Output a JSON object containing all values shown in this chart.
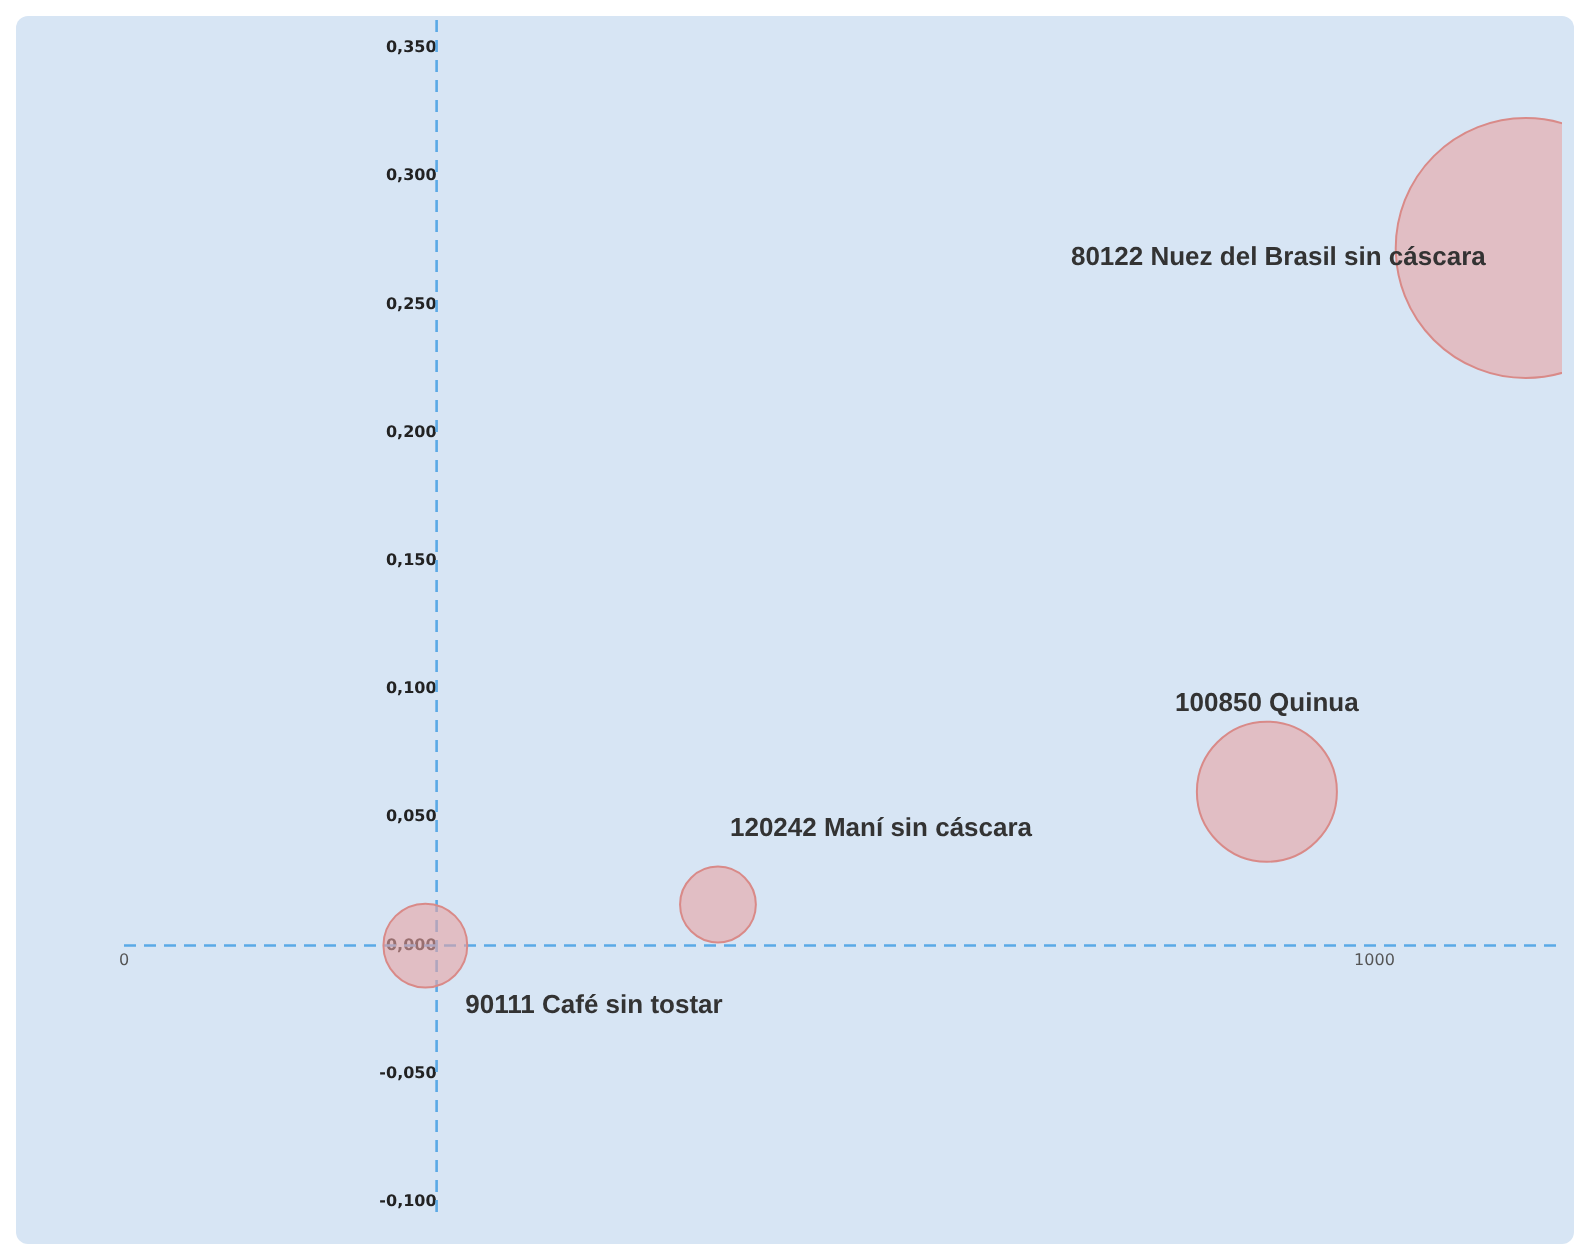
{
  "chart_data": {
    "type": "bubble",
    "x": [
      241,
      475,
      914,
      1121
    ],
    "values": [
      0,
      0.016,
      0.06,
      0.272
    ],
    "sizes": [
      0.104,
      0.085,
      0.29,
      1
    ],
    "color": "#e8a3a3",
    "xlim": [
      0,
      1150
    ],
    "xticks": [
      0,
      1000
    ],
    "ylim": [
      -0.1,
      0.35
    ],
    "yticks": [
      {
        "value": -0.1,
        "label": "-0,100"
      },
      {
        "value": -0.05,
        "label": "-0,050"
      },
      {
        "value": 0,
        "label": "0,000"
      },
      {
        "value": 0.05,
        "label": "0,050"
      },
      {
        "value": 0.1,
        "label": "0,100"
      },
      {
        "value": 0.15,
        "label": "0,150"
      },
      {
        "value": 0.2,
        "label": "0,200"
      },
      {
        "value": 0.25,
        "label": "0,250"
      },
      {
        "value": 0.3,
        "label": "0,300"
      },
      {
        "value": 0.35,
        "label": "0,350"
      }
    ],
    "ref_lines": [
      {
        "axis": "x",
        "value": 250,
        "color": "#5aa9e6",
        "line_style": "dashed"
      },
      {
        "axis": "y",
        "value": 0,
        "color": "#5aa9e6",
        "line_style": "dashed"
      }
    ],
    "annotations": [
      {
        "text": "90111 Café sin tostar",
        "x": 241,
        "y": 0
      },
      {
        "text": "120242 Maní sin cáscara",
        "x": 475,
        "y": 0.016
      },
      {
        "text": "100850 Quinua",
        "x": 914,
        "y": 0.06
      },
      {
        "text": "80122 Nuez del Brasil sin cáscara",
        "x": 1121,
        "y": 0.272
      }
    ],
    "grid": false,
    "legend": false
  }
}
